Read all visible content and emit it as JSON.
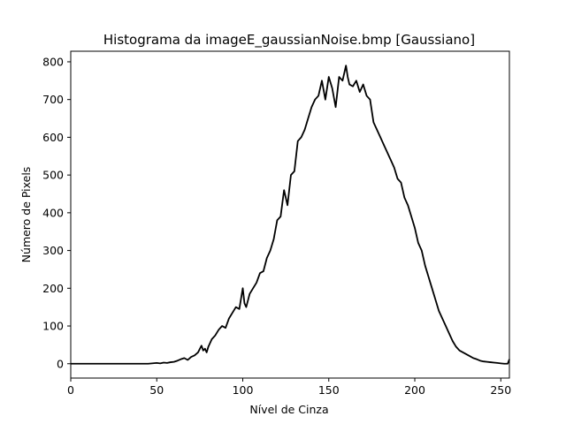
{
  "chart_data": {
    "type": "line",
    "title": "Histograma da imageE_gaussianNoise.bmp [Gaussiano]",
    "xlabel": "Nível de Cinza",
    "ylabel": "Número de Pixels",
    "xlim": [
      0,
      255
    ],
    "ylim": [
      -38,
      828
    ],
    "xticks": [
      0,
      50,
      100,
      150,
      200,
      250
    ],
    "yticks": [
      0,
      100,
      200,
      300,
      400,
      500,
      600,
      700,
      800
    ],
    "grid": false,
    "line_color": "#000000",
    "series": [
      {
        "x": [
          0,
          5,
          10,
          15,
          20,
          25,
          30,
          35,
          40,
          45,
          50,
          52,
          54,
          56,
          58,
          60,
          62,
          64,
          66,
          68,
          70,
          72,
          74,
          76,
          77,
          78,
          79,
          80,
          82,
          84,
          86,
          88,
          90,
          92,
          94,
          96,
          98,
          100,
          101,
          102,
          104,
          106,
          108,
          110,
          112,
          114,
          116,
          118,
          120,
          122,
          124,
          126,
          128,
          130,
          132,
          134,
          136,
          138,
          140,
          142,
          144,
          146,
          148,
          150,
          152,
          154,
          156,
          158,
          160,
          161,
          162,
          164,
          166,
          168,
          170,
          172,
          174,
          176,
          178,
          180,
          182,
          184,
          186,
          188,
          190,
          192,
          194,
          196,
          198,
          200,
          202,
          204,
          206,
          208,
          210,
          212,
          214,
          216,
          218,
          220,
          222,
          224,
          226,
          228,
          230,
          232,
          234,
          236,
          238,
          240,
          242,
          244,
          246,
          248,
          250,
          252,
          254,
          255
        ],
        "y": [
          0,
          0,
          0,
          0,
          0,
          0,
          0,
          0,
          0,
          0,
          2,
          1,
          3,
          2,
          4,
          5,
          8,
          12,
          15,
          10,
          18,
          22,
          30,
          48,
          35,
          40,
          30,
          45,
          65,
          75,
          90,
          100,
          95,
          120,
          135,
          150,
          145,
          200,
          160,
          150,
          185,
          200,
          215,
          240,
          245,
          280,
          300,
          330,
          380,
          390,
          460,
          420,
          500,
          510,
          590,
          600,
          620,
          650,
          680,
          700,
          710,
          750,
          700,
          760,
          730,
          680,
          760,
          750,
          790,
          760,
          740,
          735,
          750,
          720,
          740,
          710,
          700,
          640,
          620,
          600,
          580,
          560,
          540,
          520,
          490,
          480,
          440,
          420,
          390,
          360,
          320,
          300,
          260,
          230,
          200,
          170,
          140,
          120,
          100,
          80,
          60,
          45,
          35,
          30,
          25,
          20,
          15,
          12,
          8,
          6,
          5,
          4,
          3,
          2,
          1,
          0,
          0,
          12
        ]
      }
    ]
  }
}
